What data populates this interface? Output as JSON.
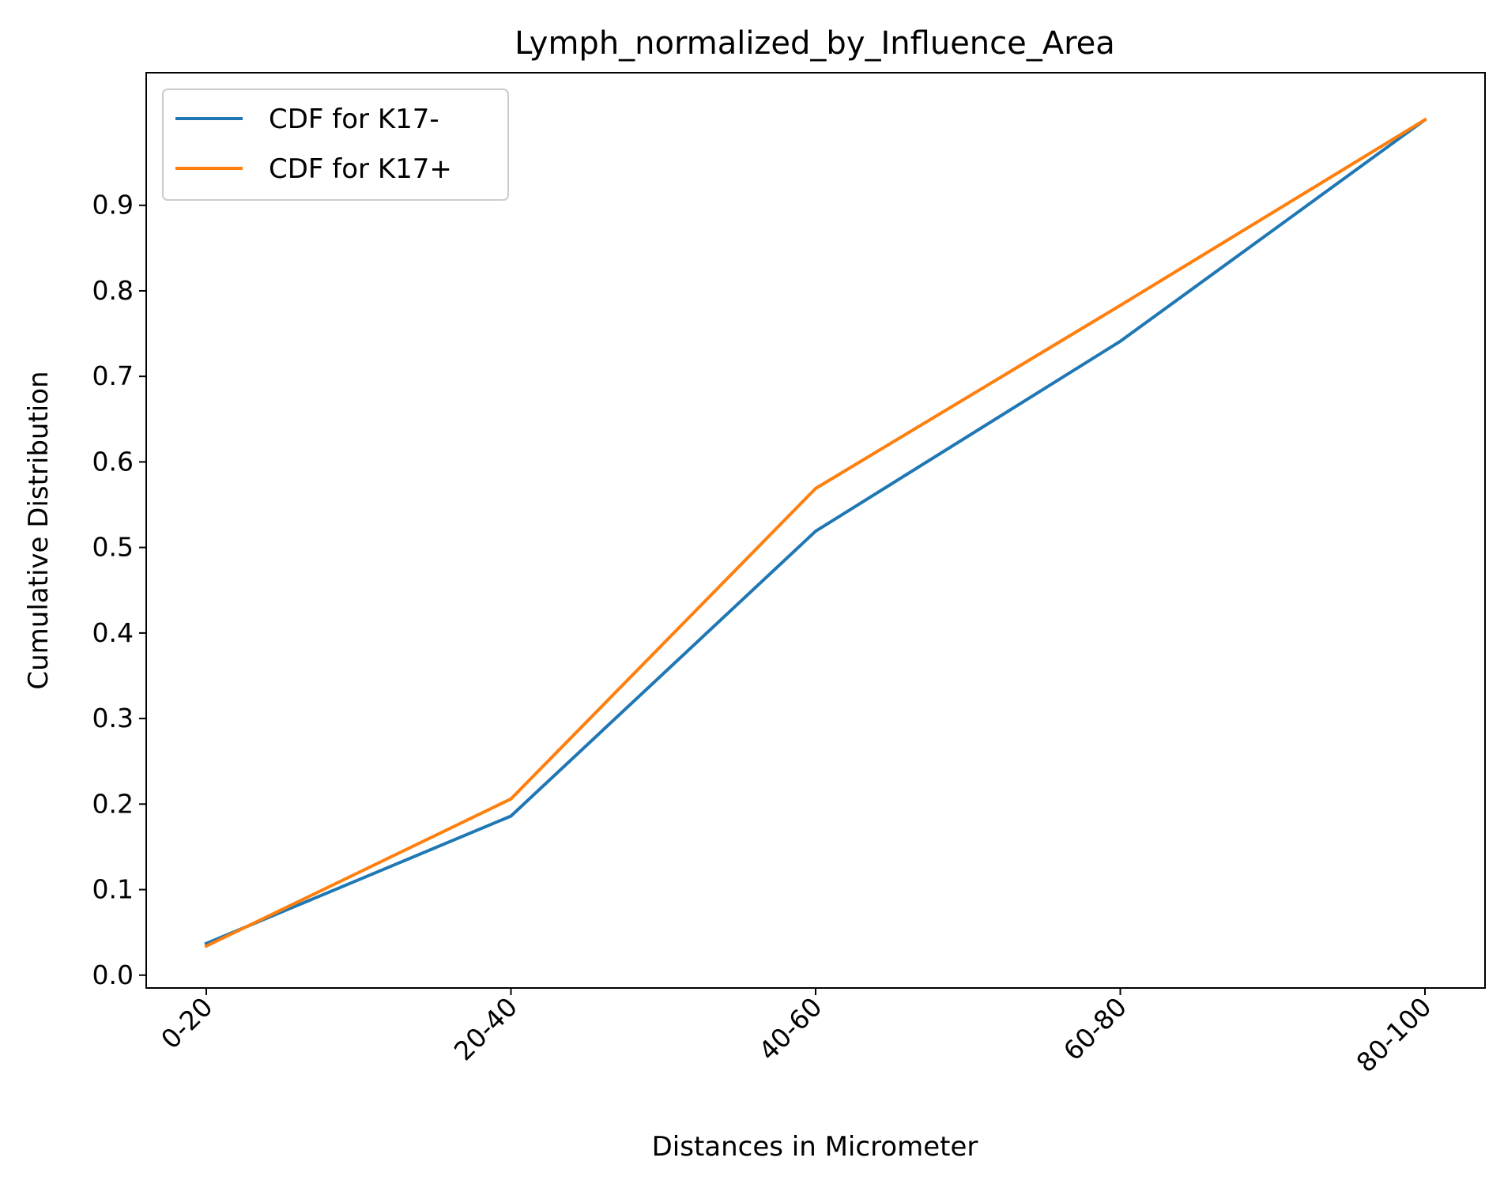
{
  "chart_data": {
    "type": "line",
    "title": "Lymph_normalized_by_Influence_Area",
    "xlabel": "Distances in Micrometer",
    "ylabel": "Cumulative Distribution",
    "categories": [
      "0-20",
      "20-40",
      "40-60",
      "60-80",
      "80-100"
    ],
    "yticks": [
      "0.0",
      "0.1",
      "0.2",
      "0.3",
      "0.4",
      "0.5",
      "0.6",
      "0.7",
      "0.8",
      "0.9"
    ],
    "ylim": [
      -0.015,
      1.055
    ],
    "grid": false,
    "legend_position": "top-left",
    "series": [
      {
        "name": "CDF for K17-",
        "color": "#1f77b4",
        "values": [
          0.037,
          0.186,
          0.519,
          0.741,
          1.0
        ]
      },
      {
        "name": "CDF for K17+",
        "color": "#ff7f0e",
        "values": [
          0.034,
          0.206,
          0.569,
          0.783,
          1.0
        ]
      }
    ]
  }
}
